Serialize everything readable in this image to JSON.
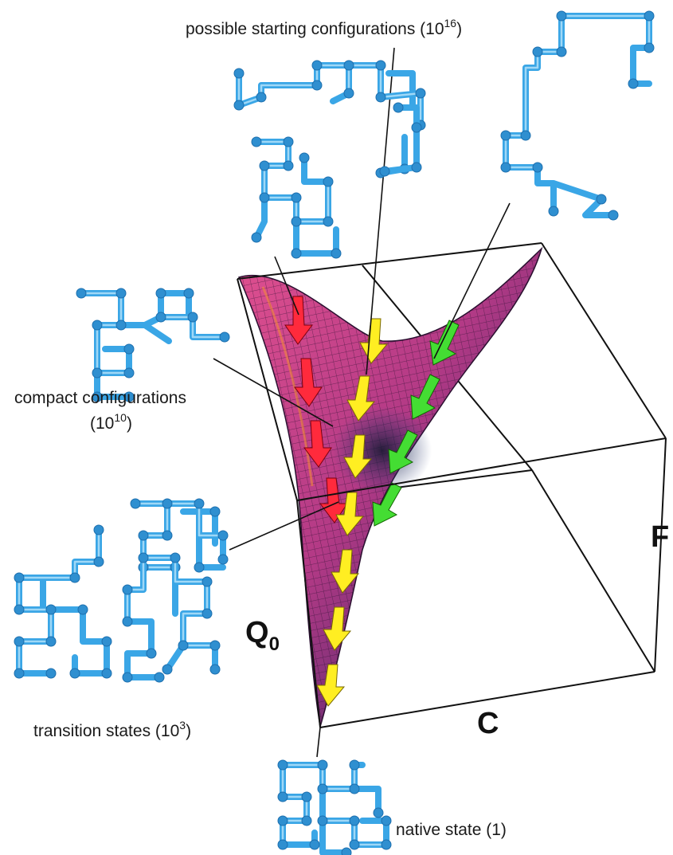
{
  "labels": {
    "starting": {
      "text": "possible starting configurations (10",
      "exp": "16",
      "tail": ")"
    },
    "compact_line1": "compact configurations",
    "compact_line2": {
      "text": "(10",
      "exp": "10",
      "tail": ")"
    },
    "transition": {
      "text": "transition states (10",
      "exp": "3",
      "tail": ")"
    },
    "native": "native state (1)"
  },
  "axes": {
    "q": "Q",
    "q_sub": "0",
    "c": "C",
    "f": "F"
  },
  "colors": {
    "surface": "#c83c8c",
    "surface_dark": "#2a1a3a",
    "chain": "#3aa6e6",
    "arrow_red": "#ff2a3c",
    "arrow_yellow": "#ffee22",
    "arrow_green": "#44dd33"
  }
}
